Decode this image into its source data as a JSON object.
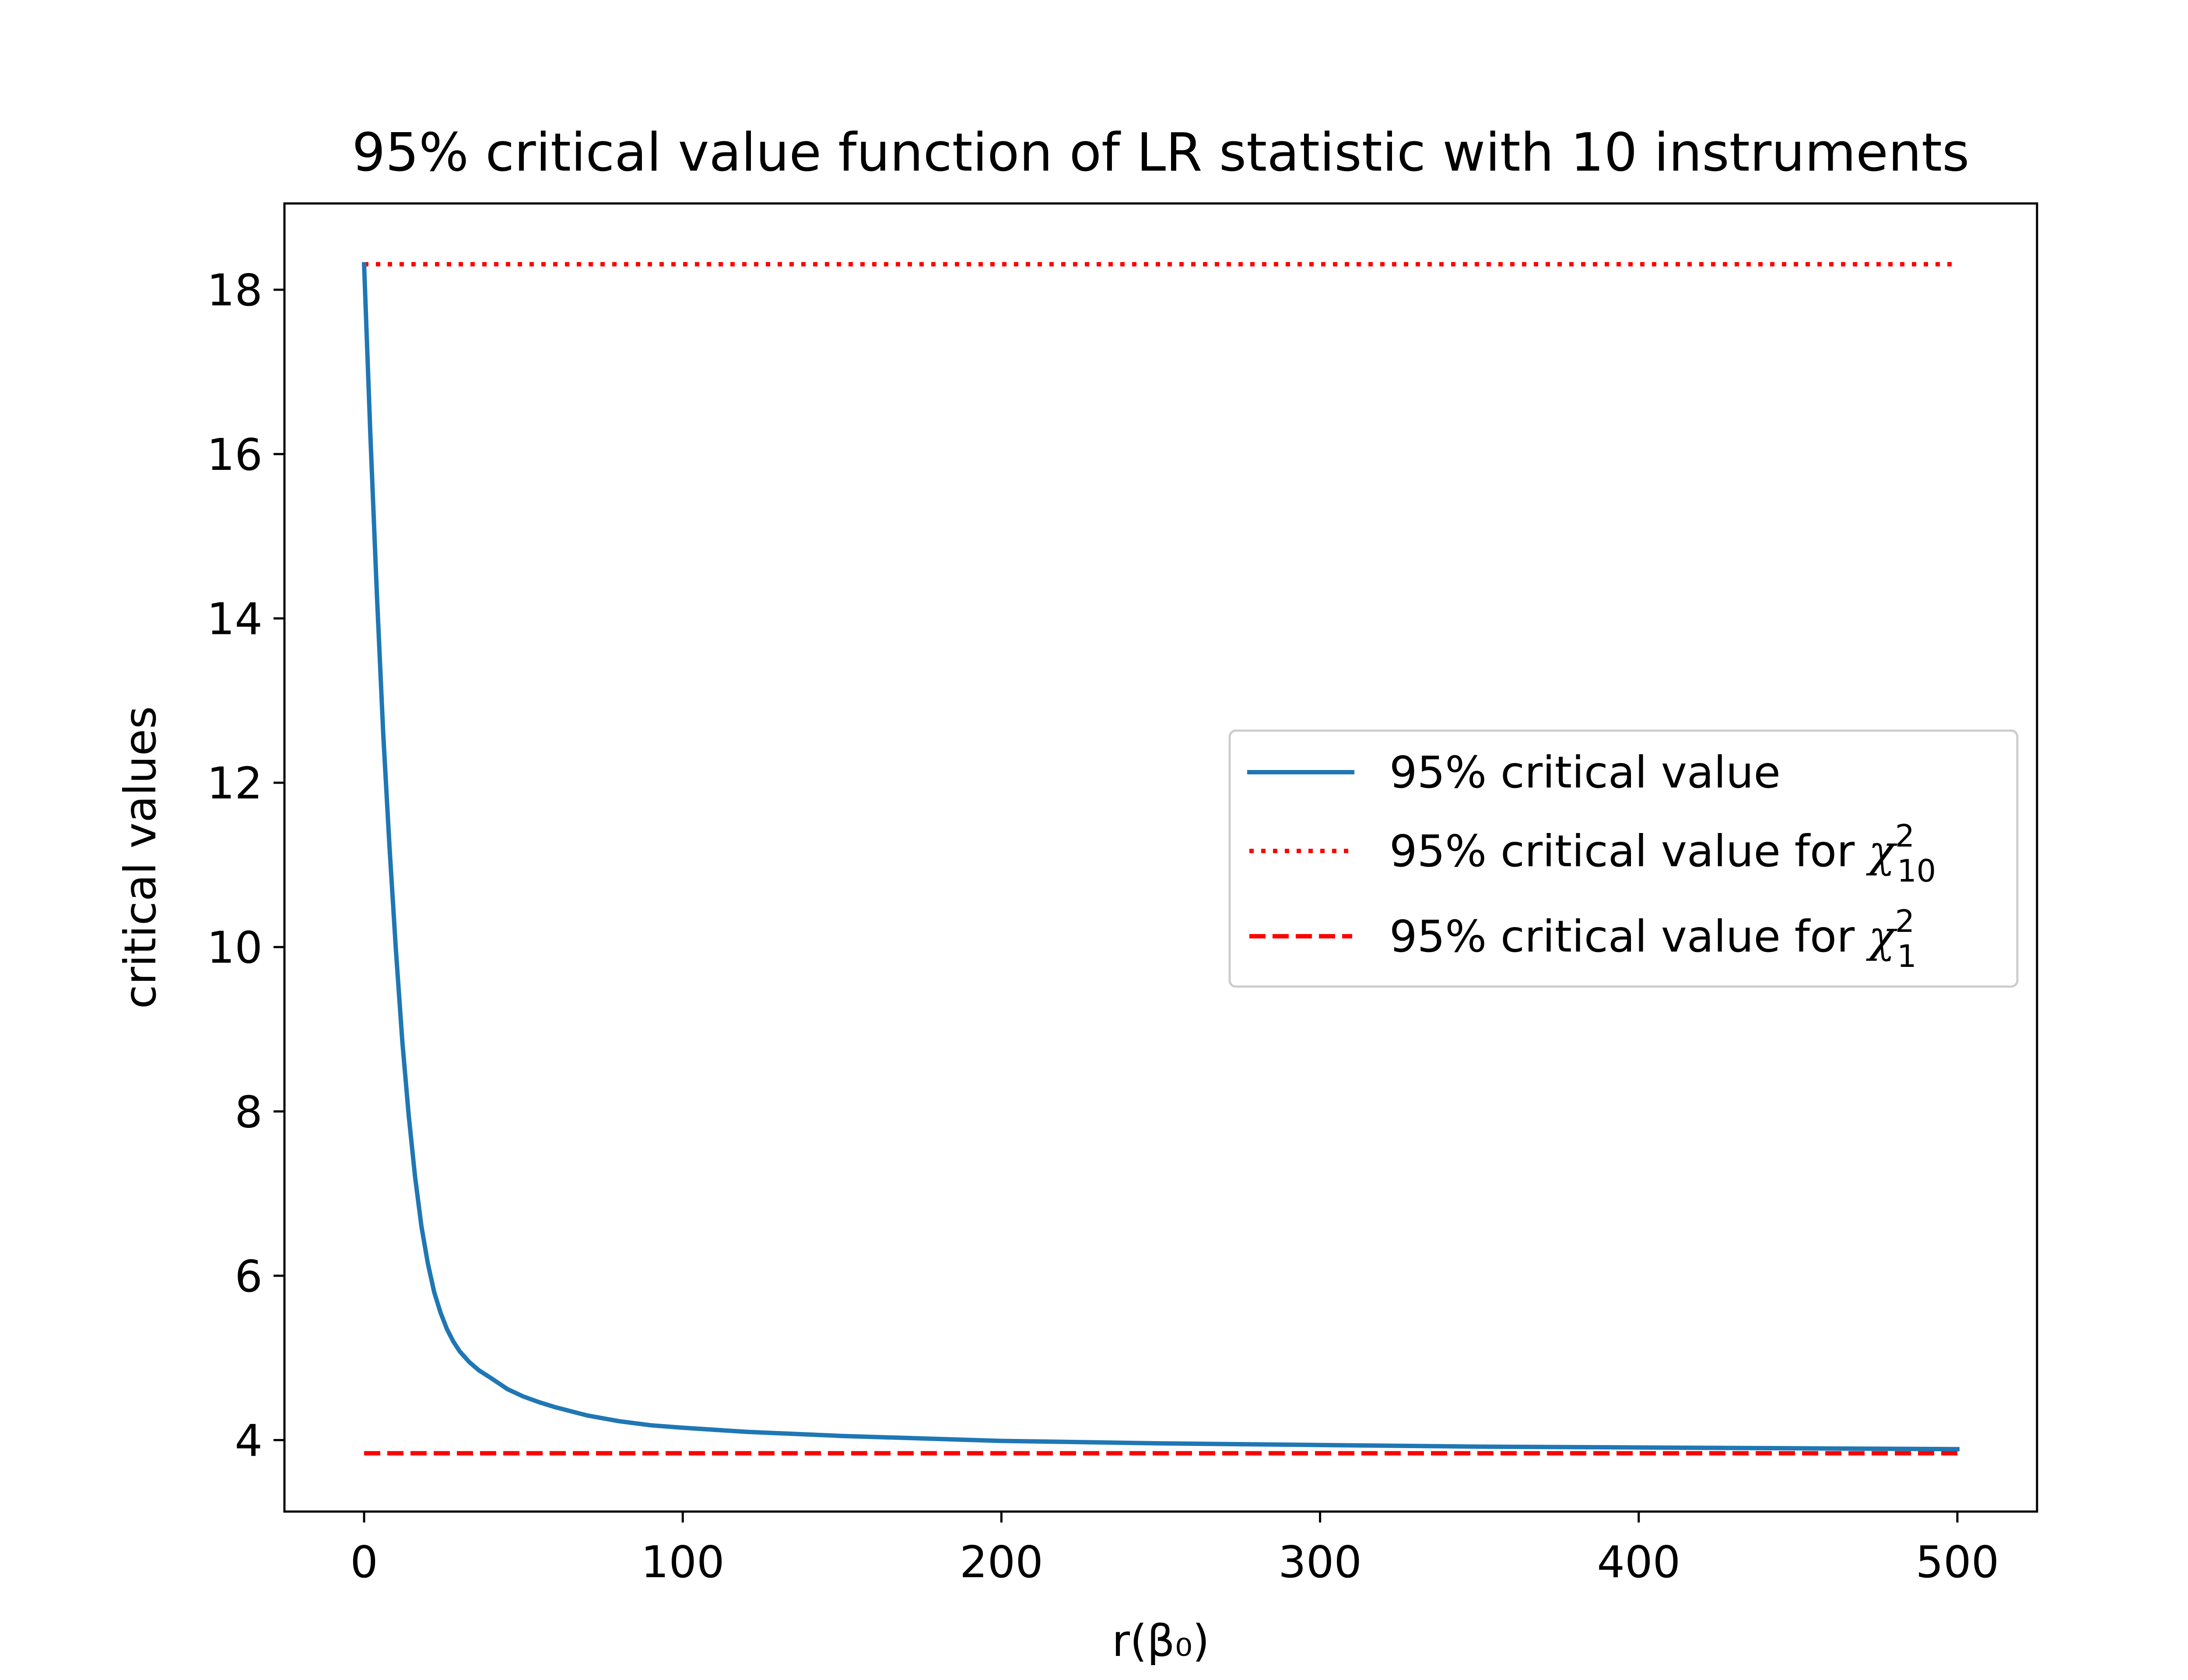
{
  "chart_data": {
    "type": "line",
    "title": "95% critical value function of LR statistic with 10 instruments",
    "xlabel": "r(β₀)",
    "ylabel": "critical values",
    "xlim": [
      -25,
      525
    ],
    "ylim": [
      3.13,
      19.05
    ],
    "xticks": [
      0,
      100,
      200,
      300,
      400,
      500
    ],
    "xtick_labels": [
      "0",
      "100",
      "200",
      "300",
      "400",
      "500"
    ],
    "yticks": [
      4,
      6,
      8,
      10,
      12,
      14,
      16,
      18
    ],
    "ytick_labels": [
      "4",
      "6",
      "8",
      "10",
      "12",
      "14",
      "16",
      "18"
    ],
    "grid": false,
    "legend_position": "center-right",
    "series": [
      {
        "name": "95% critical value",
        "style": "solid",
        "color": "#1f77b4",
        "x": [
          0,
          2,
          4,
          6,
          8,
          10,
          12,
          14,
          16,
          18,
          20,
          22,
          24,
          26,
          28,
          30,
          33,
          36,
          40,
          45,
          50,
          55,
          60,
          70,
          80,
          90,
          100,
          120,
          150,
          200,
          250,
          300,
          350,
          400,
          450,
          500
        ],
        "y": [
          18.31,
          16.2,
          14.3,
          12.6,
          11.2,
          9.95,
          8.85,
          7.95,
          7.2,
          6.6,
          6.15,
          5.8,
          5.55,
          5.35,
          5.2,
          5.08,
          4.95,
          4.85,
          4.75,
          4.62,
          4.53,
          4.46,
          4.4,
          4.3,
          4.23,
          4.18,
          4.15,
          4.1,
          4.05,
          3.99,
          3.96,
          3.94,
          3.92,
          3.91,
          3.9,
          3.89
        ]
      },
      {
        "name": "95% critical value for ",
        "math": "χ",
        "sub": "10",
        "sup": "2",
        "style": "dotted",
        "color": "#ff0000",
        "x": [
          0,
          500
        ],
        "y": [
          18.31,
          18.31
        ]
      },
      {
        "name": "95% critical value for ",
        "math": "χ",
        "sub": "1",
        "sup": "2",
        "style": "dashed",
        "color": "#ff0000",
        "x": [
          0,
          500
        ],
        "y": [
          3.84,
          3.84
        ]
      }
    ]
  }
}
